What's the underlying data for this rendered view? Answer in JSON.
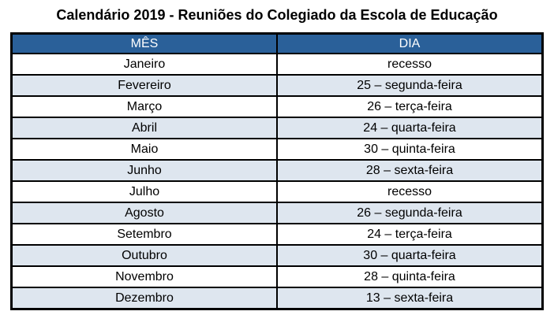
{
  "title": "Calendário 2019 - Reuniões do Colegiado da Escola de Educação",
  "table": {
    "headers": [
      "MÊS",
      "DIA"
    ],
    "rows": [
      {
        "month": "Janeiro",
        "day": "recesso"
      },
      {
        "month": "Fevereiro",
        "day": "25 – segunda-feira"
      },
      {
        "month": "Março",
        "day": "26 – terça-feira"
      },
      {
        "month": "Abril",
        "day": "24 – quarta-feira"
      },
      {
        "month": "Maio",
        "day": "30 – quinta-feira"
      },
      {
        "month": "Junho",
        "day": "28 – sexta-feira"
      },
      {
        "month": "Julho",
        "day": "recesso"
      },
      {
        "month": "Agosto",
        "day": "26 – segunda-feira"
      },
      {
        "month": "Setembro",
        "day": "24 – terça-feira"
      },
      {
        "month": "Outubro",
        "day": "30 – quarta-feira"
      },
      {
        "month": "Novembro",
        "day": "28 – quinta-feira"
      },
      {
        "month": "Dezembro",
        "day": "13 – sexta-feira"
      }
    ]
  },
  "colors": {
    "header_bg": "#2A6099",
    "header_text": "#FFFFFF",
    "row_bg": "#FFFFFF",
    "row_alt_bg": "#DEE6EF",
    "border": "#000000",
    "title_text": "#000000"
  }
}
